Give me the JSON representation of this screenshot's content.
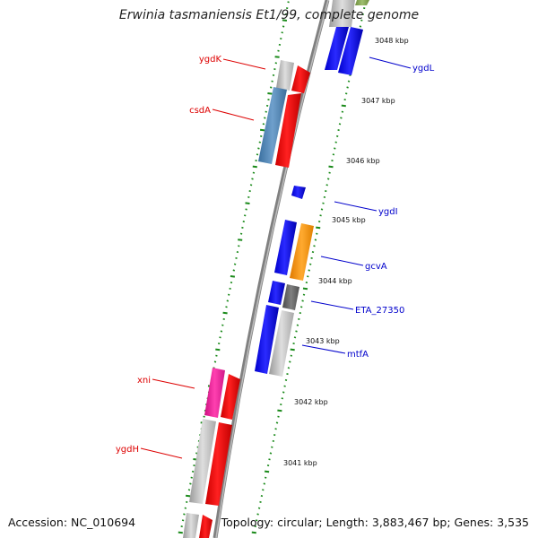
{
  "title": "Erwinia tasmaniensis Et1/99, complete genome",
  "footer": {
    "accession": "Accession: NC_010694",
    "summary": "Topology: circular; Length: 3,883,467 bp; Genes: 3,535"
  },
  "colors": {
    "backbone": "#808080",
    "ruler_tick": "#1a8a1a",
    "label_forward": "#0000cc",
    "label_reverse": "#dd0000"
  },
  "kbp_labels": [
    "3048 kbp",
    "3047 kbp",
    "3046 kbp",
    "3045 kbp",
    "3044 kbp",
    "3043 kbp",
    "3042 kbp",
    "3041 kbp"
  ],
  "genes": [
    {
      "name": "ygdL",
      "strand": "forward"
    },
    {
      "name": "ygdK",
      "strand": "reverse"
    },
    {
      "name": "csdA",
      "strand": "reverse"
    },
    {
      "name": "ygdI",
      "strand": "forward"
    },
    {
      "name": "gcvA",
      "strand": "forward"
    },
    {
      "name": "ETA_27350",
      "strand": "forward"
    },
    {
      "name": "mtfA",
      "strand": "forward"
    },
    {
      "name": "xni",
      "strand": "reverse"
    },
    {
      "name": "ygdH",
      "strand": "reverse"
    }
  ]
}
